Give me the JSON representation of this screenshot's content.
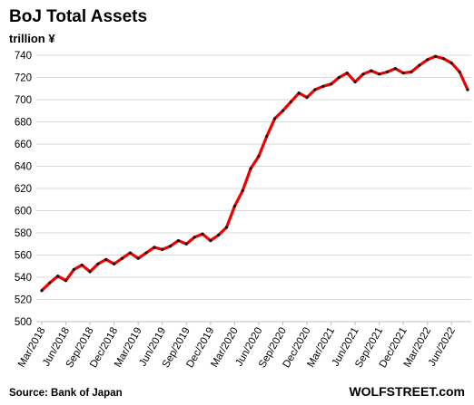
{
  "chart_data": {
    "type": "line",
    "title": "BoJ Total Assets",
    "unit_label": "trillion ¥",
    "source": "Source: Bank of Japan",
    "brand": "WOLFSTREET.com",
    "ylim": [
      500,
      740
    ],
    "yticks": [
      500,
      520,
      540,
      560,
      580,
      600,
      620,
      640,
      660,
      680,
      700,
      720,
      740
    ],
    "grid": true,
    "line_color": "#ee0000",
    "marker_color": "#111111",
    "xtick_labels": [
      "Mar/2018",
      "Jun/2018",
      "Sep/2018",
      "Dec/2018",
      "Mar/2019",
      "Jun/2019",
      "Sep/2019",
      "Dec/2019",
      "Mar/2020",
      "Jun/2020",
      "Sep/2020",
      "Dec/2020",
      "Mar/2021",
      "Jun/2021",
      "Sep/2021",
      "Dec/2021",
      "Mar/2022",
      "Jun/2022"
    ],
    "x": [
      "Mar/2018",
      "Apr/2018",
      "May/2018",
      "Jun/2018",
      "Jul/2018",
      "Aug/2018",
      "Sep/2018",
      "Oct/2018",
      "Nov/2018",
      "Dec/2018",
      "Jan/2019",
      "Feb/2019",
      "Mar/2019",
      "Apr/2019",
      "May/2019",
      "Jun/2019",
      "Jul/2019",
      "Aug/2019",
      "Sep/2019",
      "Oct/2019",
      "Nov/2019",
      "Dec/2019",
      "Jan/2020",
      "Feb/2020",
      "Mar/2020",
      "Apr/2020",
      "May/2020",
      "Jun/2020",
      "Jul/2020",
      "Aug/2020",
      "Sep/2020",
      "Oct/2020",
      "Nov/2020",
      "Dec/2020",
      "Jan/2021",
      "Feb/2021",
      "Mar/2021",
      "Apr/2021",
      "May/2021",
      "Jun/2021",
      "Jul/2021",
      "Aug/2021",
      "Sep/2021",
      "Oct/2021",
      "Nov/2021",
      "Dec/2021",
      "Jan/2022",
      "Feb/2022",
      "Mar/2022",
      "Apr/2022",
      "May/2022",
      "Jun/2022",
      "Jul/2022",
      "Aug/2022"
    ],
    "series": [
      {
        "values": [
          528,
          535,
          541,
          537,
          547,
          551,
          545,
          552,
          556,
          552,
          557,
          562,
          557,
          562,
          567,
          565,
          568,
          573,
          570,
          576,
          579,
          573,
          578,
          585,
          604,
          618,
          638,
          649,
          667,
          683,
          690,
          698,
          706,
          702,
          709,
          712,
          714,
          720,
          724,
          716,
          723,
          726,
          723,
          725,
          728,
          724,
          725,
          731,
          736,
          739,
          737,
          733,
          725,
          709
        ]
      }
    ]
  }
}
